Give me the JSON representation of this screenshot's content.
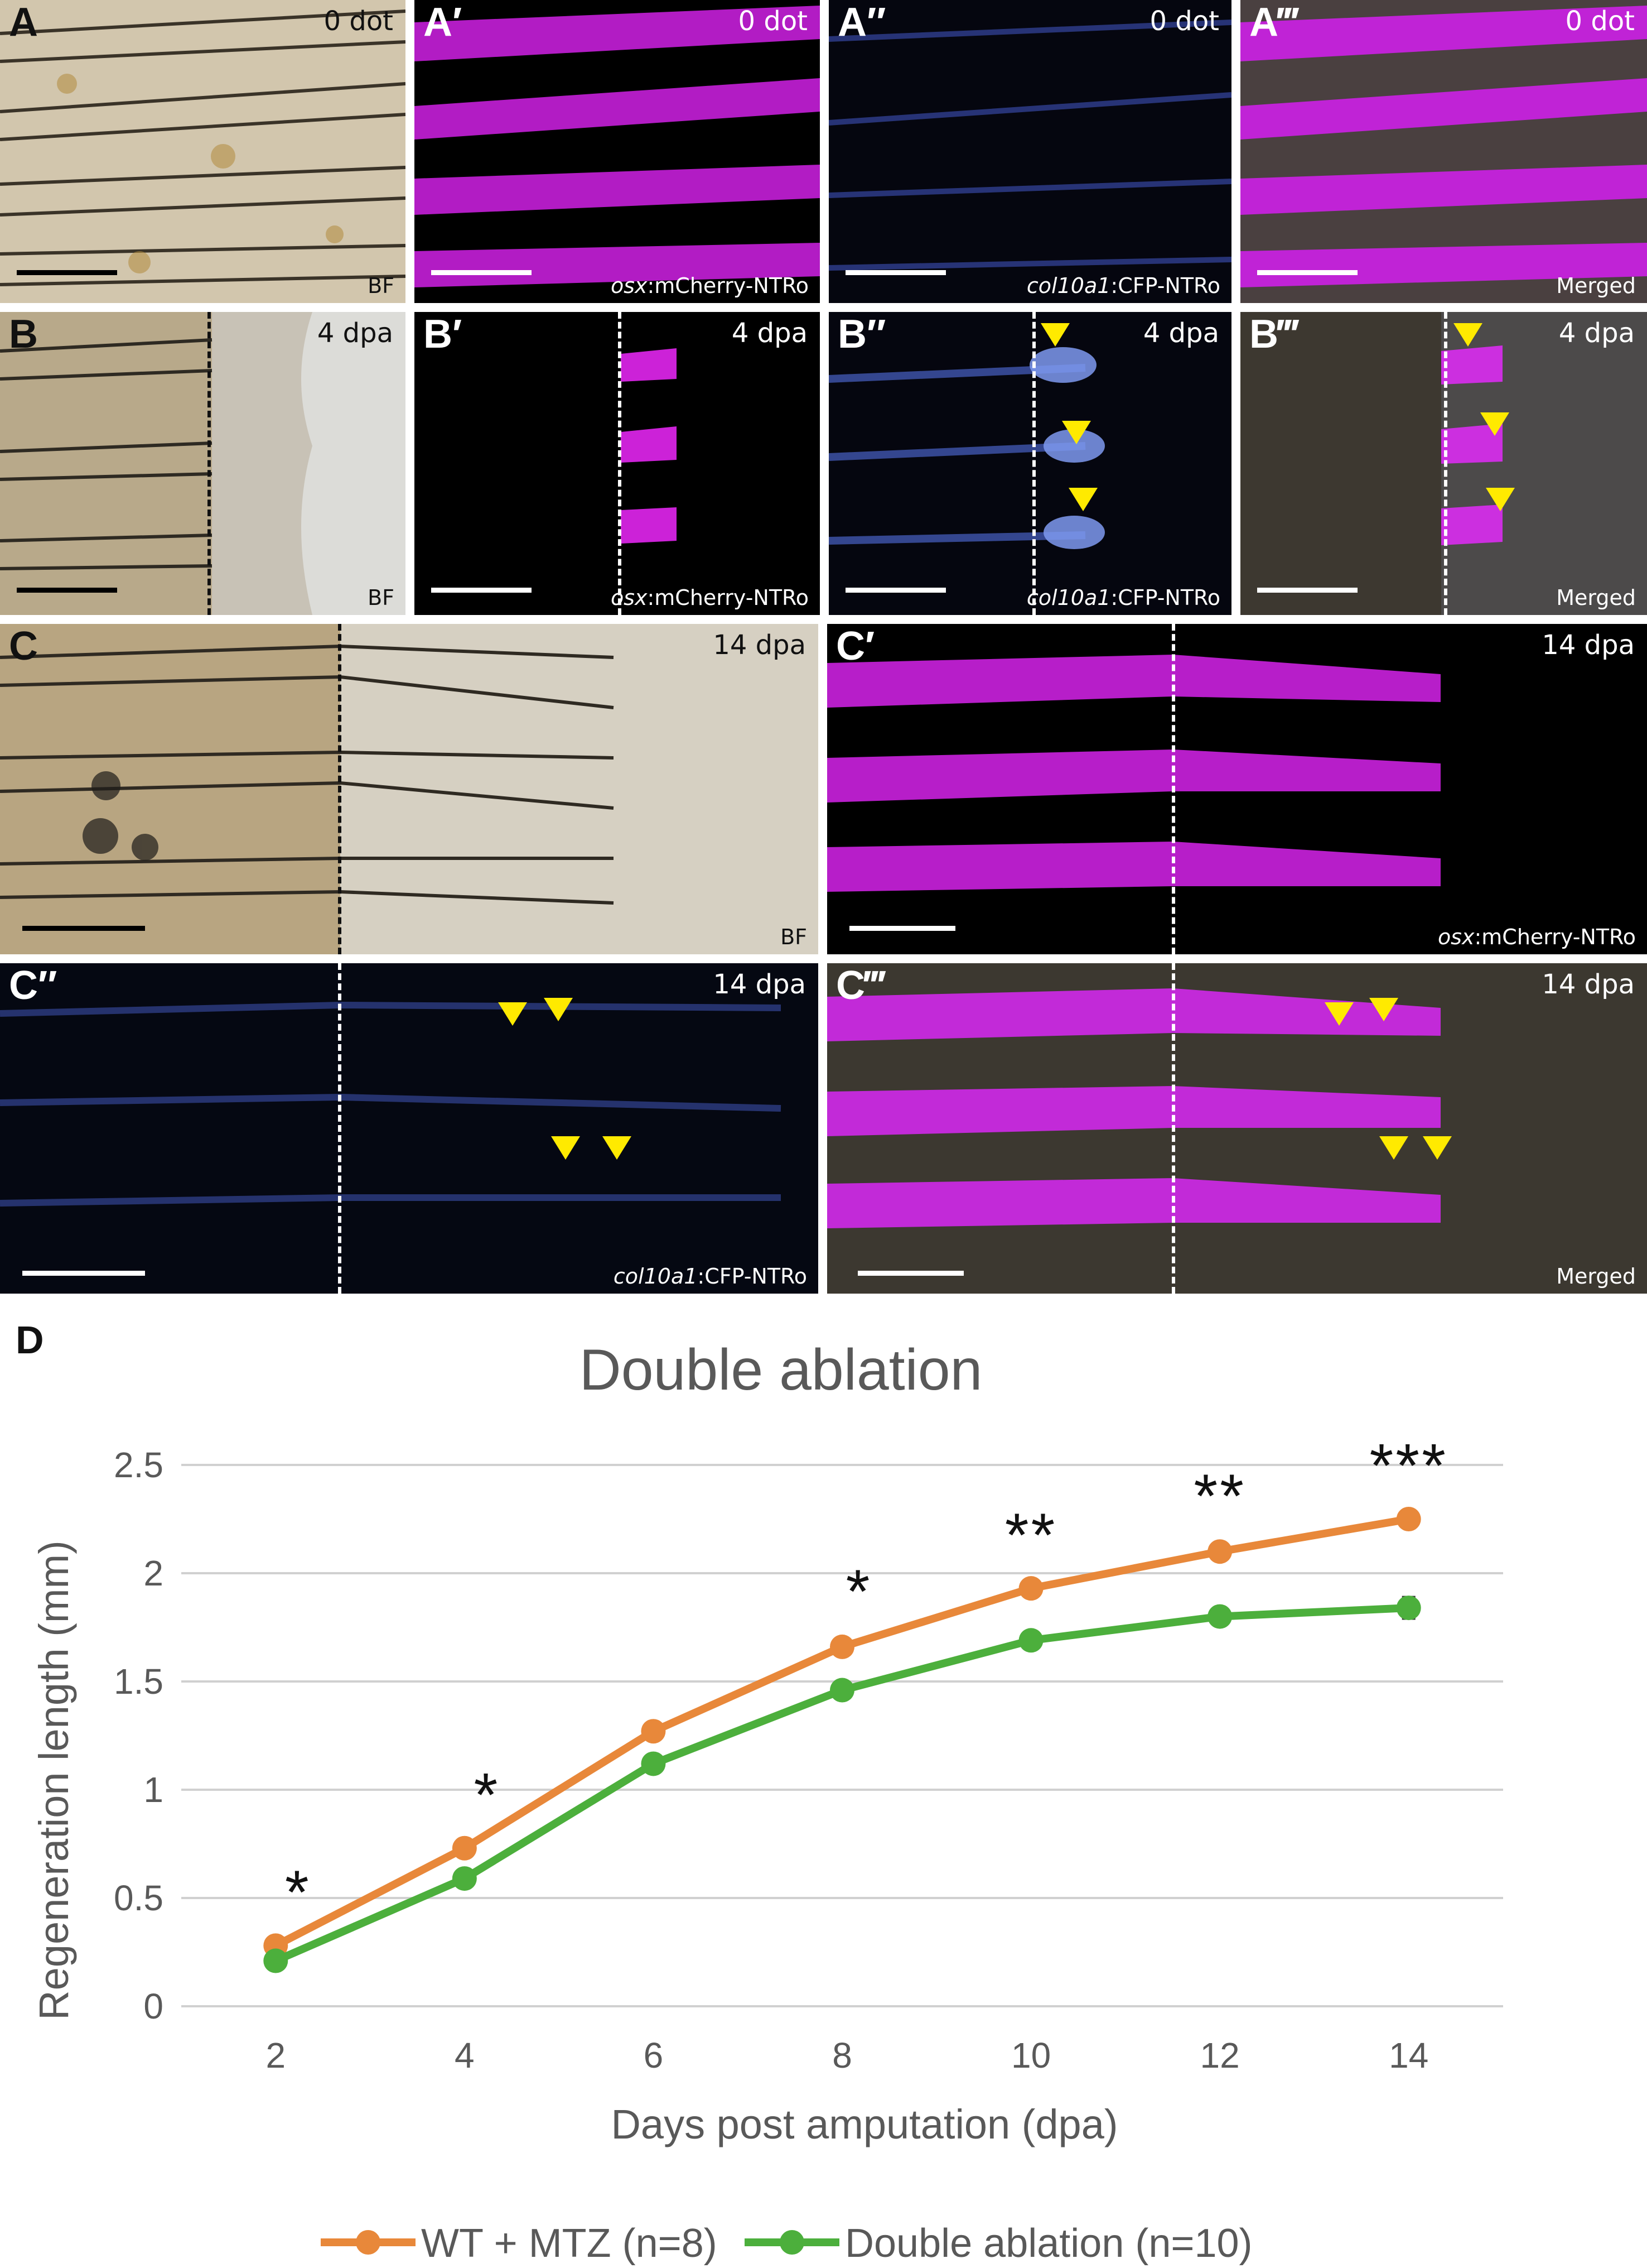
{
  "panels": {
    "A": {
      "label": "A",
      "condition": "0 dot",
      "caption": "BF"
    },
    "A1": {
      "label": "A′",
      "condition": "0 dot",
      "caption_italic": "osx",
      "caption_rest": ":mCherry-NTRo"
    },
    "A2": {
      "label": "A″",
      "condition": "0 dot",
      "caption_italic": "col10a1",
      "caption_rest": ":CFP-NTRo"
    },
    "A3": {
      "label": "A‴",
      "condition": "0 dot",
      "caption": "Merged"
    },
    "B": {
      "label": "B",
      "condition": "4 dpa",
      "caption": "BF"
    },
    "B1": {
      "label": "B′",
      "condition": "4 dpa",
      "caption_italic": "osx",
      "caption_rest": ":mCherry-NTRo"
    },
    "B2": {
      "label": "B″",
      "condition": "4 dpa",
      "caption_italic": "col10a1",
      "caption_rest": ":CFP-NTRo"
    },
    "B3": {
      "label": "B‴",
      "condition": "4 dpa",
      "caption": "Merged"
    },
    "C": {
      "label": "C",
      "condition": "14 dpa",
      "caption": "BF"
    },
    "C1": {
      "label": "C′",
      "condition": "14 dpa",
      "caption_italic": "osx",
      "caption_rest": ":mCherry-NTRo"
    },
    "C2": {
      "label": "C″",
      "condition": "14 dpa",
      "caption_italic": "col10a1",
      "caption_rest": ":CFP-NTRo"
    },
    "C3": {
      "label": "C‴",
      "condition": "14 dpa",
      "caption": "Merged"
    }
  },
  "colors": {
    "magenta": "#d21ee0",
    "cfp": "#5a78e6",
    "arrow": "#ffea00",
    "bf_bg": "#cdbfa3",
    "wt_series": "#e8883a",
    "ablation_series": "#4caf3c"
  },
  "chart_data": {
    "type": "line",
    "panel_label": "D",
    "title": "Double ablation",
    "xlabel": "Days post amputation (dpa)",
    "ylabel": "Regeneration length (mm)",
    "x": [
      2,
      4,
      6,
      8,
      10,
      12,
      14
    ],
    "ylim": [
      0,
      2.5
    ],
    "yticks": [
      0,
      0.5,
      1,
      1.5,
      2,
      2.5
    ],
    "grid": true,
    "legend_position": "bottom",
    "series": [
      {
        "name": "WT + MTZ (n=8)",
        "values": [
          0.28,
          0.73,
          1.27,
          1.66,
          1.93,
          2.1,
          2.25
        ],
        "errors": [
          0.02,
          0.02,
          0.03,
          0.03,
          0.02,
          0.03,
          0.02
        ],
        "color": "#e8883a"
      },
      {
        "name": "Double ablation (n=10)",
        "values": [
          0.21,
          0.59,
          1.12,
          1.46,
          1.69,
          1.8,
          1.84
        ],
        "errors": [
          0.02,
          0.02,
          0.04,
          0.04,
          0.04,
          0.04,
          0.05
        ],
        "color": "#4caf3c"
      }
    ],
    "significance": [
      "*",
      "*",
      "",
      "*",
      "**",
      "**",
      "***"
    ]
  }
}
